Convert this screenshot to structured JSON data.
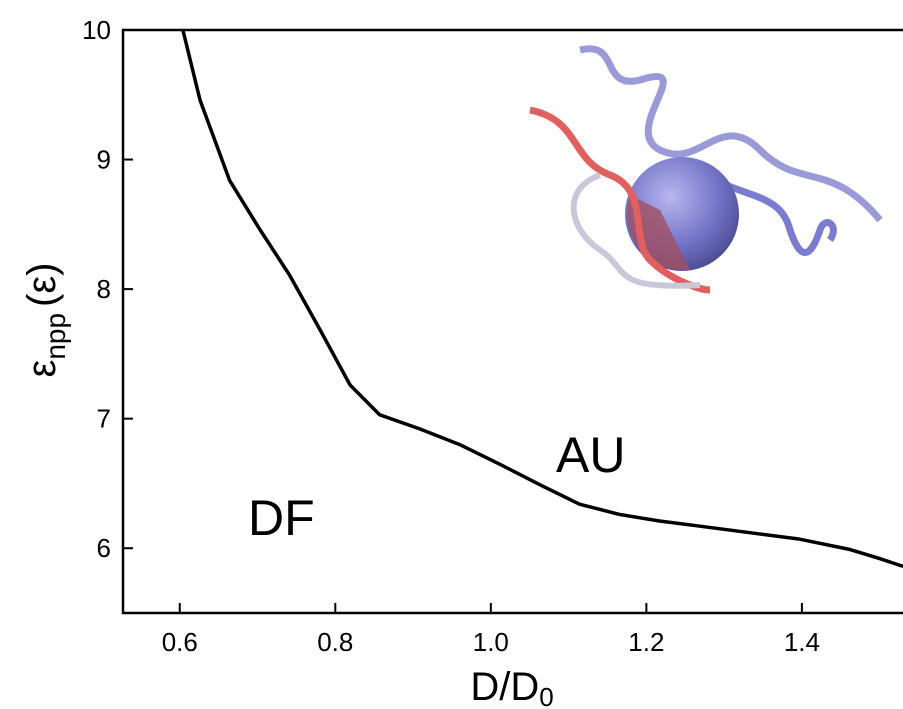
{
  "chart_data": {
    "type": "line",
    "x_label": {
      "main": "D/D",
      "sub": "0"
    },
    "y_label": {
      "main": "ε",
      "sub": "npp",
      "tail": "(ε)"
    },
    "annotations": [
      "DF",
      "AU"
    ],
    "x": [
      0.604,
      0.626,
      0.664,
      0.703,
      0.741,
      0.78,
      0.819,
      0.857,
      0.909,
      0.96,
      1.011,
      1.063,
      1.114,
      1.166,
      1.217,
      1.269,
      1.333,
      1.397,
      1.462,
      1.5,
      1.53
    ],
    "series": [
      {
        "color": "#000000",
        "values": [
          10,
          9.46,
          8.84,
          8.46,
          8.11,
          7.69,
          7.26,
          7.03,
          6.92,
          6.8,
          6.65,
          6.49,
          6.34,
          6.26,
          6.21,
          6.17,
          6.12,
          6.07,
          5.99,
          5.92,
          5.86
        ]
      }
    ],
    "xlim": [
      0.527,
      1.53
    ],
    "ylim": [
      5.5,
      10
    ],
    "xticks": [
      0.6,
      0.8,
      {
        "value": 1.0,
        "label": "1.0"
      },
      1.2,
      1.4
    ],
    "yticks": [
      6,
      7,
      8,
      9,
      10
    ]
  }
}
